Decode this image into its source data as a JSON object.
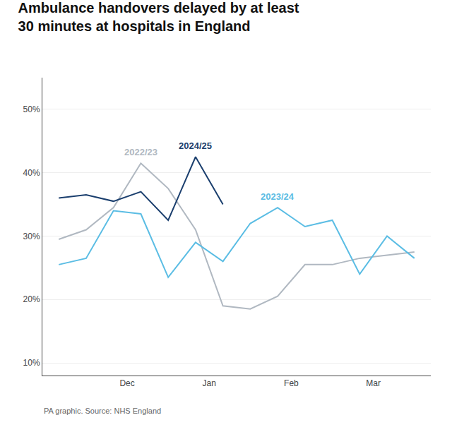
{
  "chart_data": {
    "type": "line",
    "title": "Ambulance handovers delayed by at least\n30 minutes at hospitals in England",
    "source": "PA graphic. Source: NHS England",
    "x": [
      0,
      0.5,
      1,
      1.5,
      2,
      2.5,
      3,
      3.5,
      4,
      4.5,
      5,
      5.5,
      6,
      6.5
    ],
    "series": [
      {
        "name": "2022/23",
        "color": "#b0b8c1",
        "values": [
          29.5,
          31.0,
          34.5,
          41.5,
          37.5,
          31.0,
          19.0,
          18.5,
          20.5,
          25.5,
          25.5,
          26.5,
          27.0,
          27.5
        ]
      },
      {
        "name": "2023/24",
        "color": "#5bbde4",
        "values": [
          25.5,
          26.5,
          34.0,
          33.5,
          23.5,
          29.0,
          26.0,
          32.0,
          34.5,
          31.5,
          32.5,
          24.0,
          30.0,
          26.5
        ]
      },
      {
        "name": "2024/25",
        "color": "#1b3f6e",
        "values": [
          36.0,
          36.5,
          35.5,
          37.0,
          32.5,
          42.5,
          35.0,
          null,
          null,
          null,
          null,
          null,
          null,
          null
        ]
      }
    ],
    "xlim": [
      -0.3,
      6.8
    ],
    "xticks": [
      {
        "value": 1.25,
        "label": "Dec"
      },
      {
        "value": 2.75,
        "label": "Jan"
      },
      {
        "value": 4.25,
        "label": "Feb"
      },
      {
        "value": 5.75,
        "label": "Mar"
      }
    ],
    "ylim": [
      8,
      55
    ],
    "yticks": [
      {
        "value": 10,
        "label": "10%"
      },
      {
        "value": 20,
        "label": "20%"
      },
      {
        "value": 30,
        "label": "30%"
      },
      {
        "value": 40,
        "label": "40%"
      },
      {
        "value": 50,
        "label": "50%"
      }
    ],
    "grid": true
  }
}
